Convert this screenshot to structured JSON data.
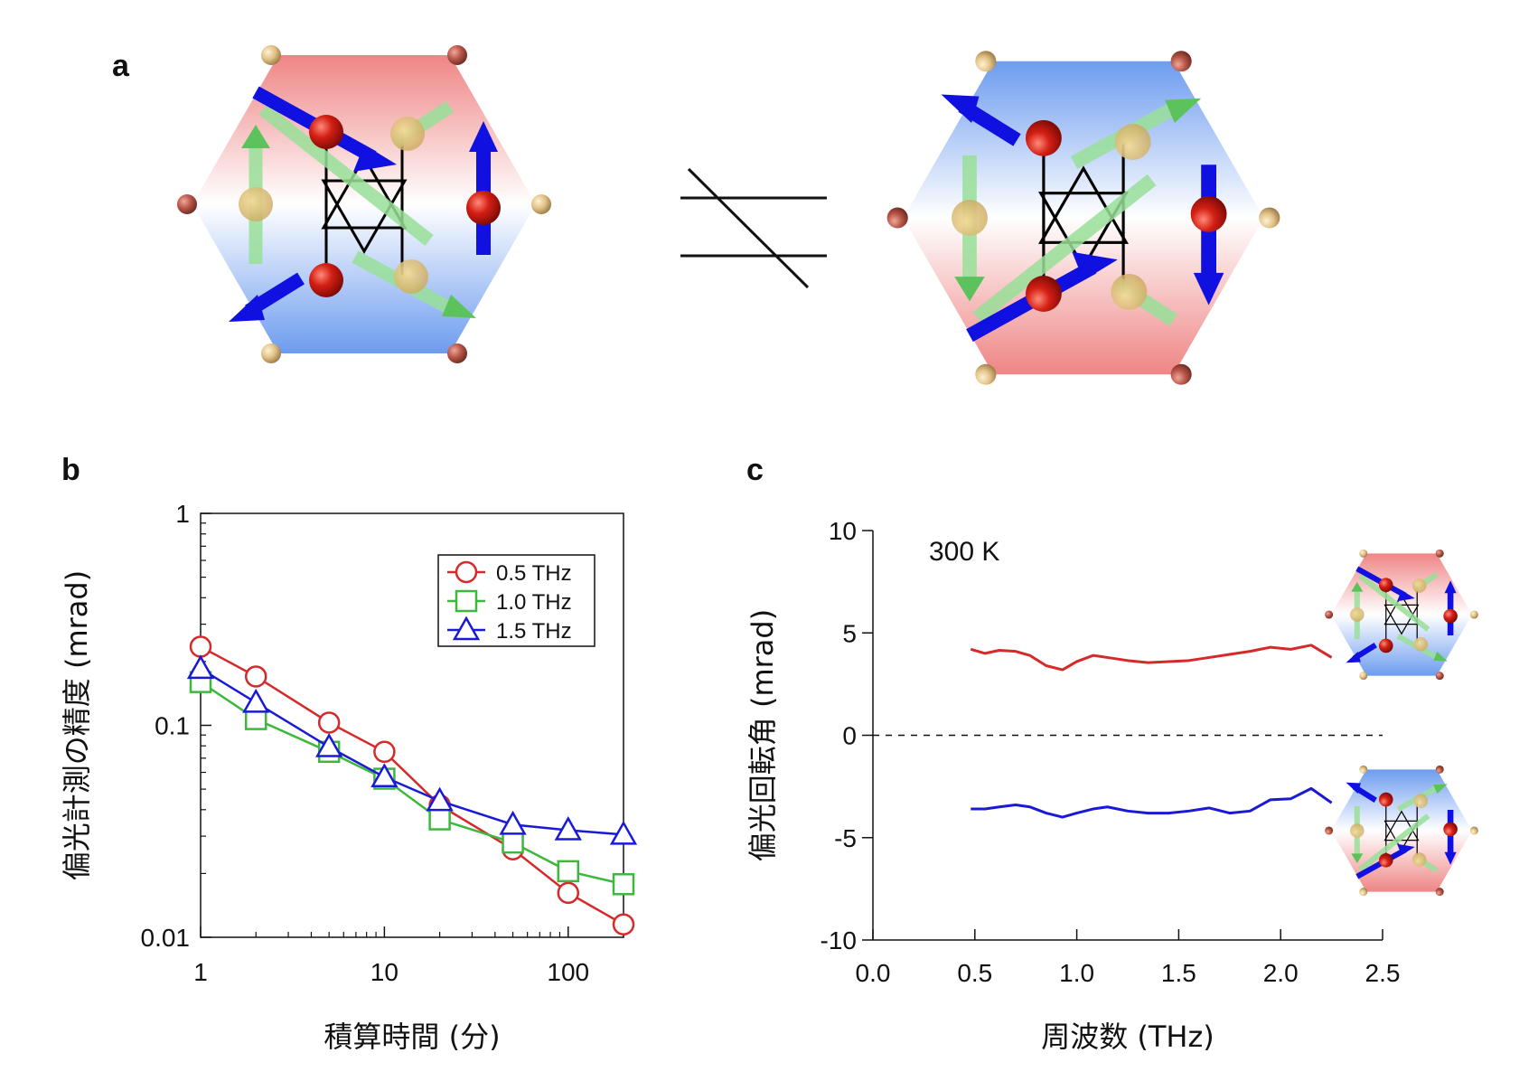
{
  "panels": {
    "a": "a",
    "b": "b",
    "c": "c"
  },
  "colors": {
    "red": "#d62a2a",
    "green": "#3db83d",
    "blue": "#1a1ad6",
    "hex_red": "#ef8f8f",
    "hex_blue": "#7fa6ef",
    "atom_red": "#d41f14",
    "atom_tan": "#e3c48a"
  },
  "chart_data": [
    {
      "type": "line",
      "panel": "b",
      "xlabel": "積算時間 (分)",
      "ylabel": "偏光計測の精度 (mrad)",
      "x_scale": "log",
      "y_scale": "log",
      "xlim": [
        1,
        200
      ],
      "ylim": [
        0.01,
        1
      ],
      "x_ticks": [
        1,
        10,
        100
      ],
      "x_tick_labels": [
        "1",
        "10",
        "100"
      ],
      "y_ticks": [
        0.01,
        0.1,
        1
      ],
      "y_tick_labels": [
        "0.01",
        "0.1",
        "1"
      ],
      "legend_position": "top-right",
      "grid": false,
      "series": [
        {
          "name": "0.5 THz",
          "marker": "circle",
          "color": "#d62a2a",
          "x": [
            1,
            2,
            5,
            10,
            20,
            50,
            100,
            200
          ],
          "y": [
            0.235,
            0.17,
            0.103,
            0.075,
            0.042,
            0.026,
            0.0162,
            0.0115
          ]
        },
        {
          "name": "1.0 THz",
          "marker": "square",
          "color": "#3db83d",
          "x": [
            1,
            2,
            5,
            10,
            20,
            50,
            100,
            200
          ],
          "y": [
            0.16,
            0.107,
            0.075,
            0.056,
            0.036,
            0.028,
            0.0205,
            0.0178
          ]
        },
        {
          "name": "1.5 THz",
          "marker": "triangle",
          "color": "#1a1ad6",
          "x": [
            1,
            2,
            5,
            10,
            20,
            50,
            100,
            200
          ],
          "y": [
            0.185,
            0.128,
            0.079,
            0.057,
            0.044,
            0.034,
            0.032,
            0.0305
          ]
        }
      ]
    },
    {
      "type": "line",
      "panel": "c",
      "xlabel": "周波数 (THz)",
      "ylabel": "偏光回転角 (mrad)",
      "annotation": "300 K",
      "xlim": [
        0,
        2.5
      ],
      "ylim": [
        -10,
        10
      ],
      "x_ticks": [
        0,
        0.5,
        1,
        1.5,
        2,
        2.5
      ],
      "x_tick_labels": [
        "0.0",
        "0.5",
        "1.0",
        "1.5",
        "2.0",
        "2.5"
      ],
      "y_ticks": [
        -10,
        -5,
        0,
        5,
        10
      ],
      "y_tick_labels": [
        "-10",
        "-5",
        "0",
        "5",
        "10"
      ],
      "zero_line": "dashed",
      "grid": false,
      "series": [
        {
          "color": "#d62a2a",
          "x": [
            0.48,
            0.55,
            0.62,
            0.7,
            0.77,
            0.85,
            0.93,
            1.0,
            1.08,
            1.15,
            1.25,
            1.35,
            1.45,
            1.55,
            1.65,
            1.75,
            1.85,
            1.95,
            2.05,
            2.15,
            2.25
          ],
          "y": [
            4.2,
            4.0,
            4.15,
            4.1,
            3.9,
            3.4,
            3.2,
            3.6,
            3.9,
            3.8,
            3.65,
            3.55,
            3.6,
            3.65,
            3.8,
            3.95,
            4.1,
            4.3,
            4.2,
            4.4,
            3.8
          ]
        },
        {
          "color": "#1a1ad6",
          "x": [
            0.48,
            0.55,
            0.62,
            0.7,
            0.77,
            0.85,
            0.93,
            1.0,
            1.08,
            1.15,
            1.25,
            1.35,
            1.45,
            1.55,
            1.65,
            1.75,
            1.85,
            1.95,
            2.05,
            2.15,
            2.25
          ],
          "y": [
            -3.6,
            -3.6,
            -3.5,
            -3.4,
            -3.5,
            -3.8,
            -4.0,
            -3.8,
            -3.6,
            -3.5,
            -3.7,
            -3.8,
            -3.8,
            -3.7,
            -3.55,
            -3.8,
            -3.7,
            -3.15,
            -3.1,
            -2.6,
            -3.3
          ]
        }
      ]
    }
  ]
}
